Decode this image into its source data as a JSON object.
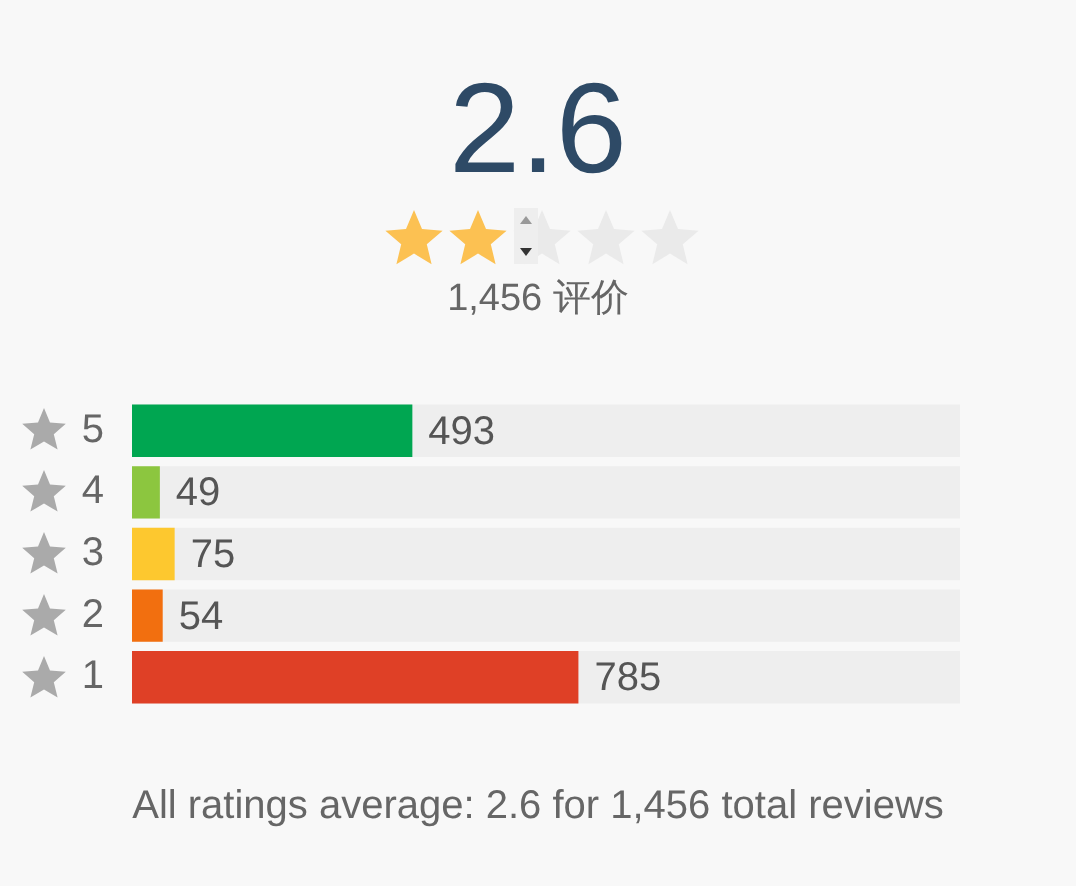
{
  "chart_data": {
    "type": "bar",
    "orientation": "horizontal",
    "title": "2.6",
    "subtitle": "1,456 评价",
    "categories": [
      "5",
      "4",
      "3",
      "2",
      "1"
    ],
    "values": [
      493,
      49,
      75,
      54,
      785
    ],
    "colors": [
      "#00a651",
      "#8cc63f",
      "#fdc82f",
      "#f26f0f",
      "#df4026"
    ],
    "tick_labels": "y",
    "data_labels": true,
    "grid": false,
    "legend": false,
    "annotations": [
      "All ratings average: 2.6 for 1,456 total reviews"
    ]
  }
}
